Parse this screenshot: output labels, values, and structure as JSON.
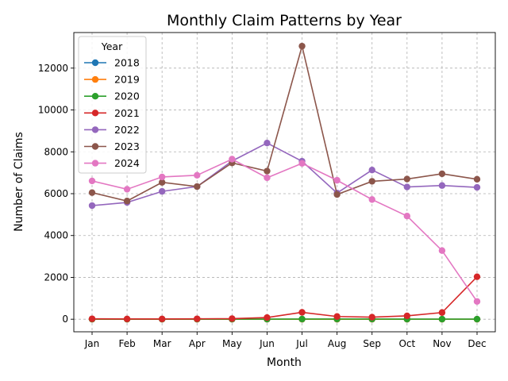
{
  "chart_data": {
    "type": "line",
    "title": "Monthly Claim Patterns by Year",
    "xlabel": "Month",
    "ylabel": "Number of Claims",
    "categories": [
      "Jan",
      "Feb",
      "Mar",
      "Apr",
      "May",
      "Jun",
      "Jul",
      "Aug",
      "Sep",
      "Oct",
      "Nov",
      "Dec"
    ],
    "ylim": [
      -600,
      13700
    ],
    "yticks": [
      0,
      2000,
      4000,
      6000,
      8000,
      10000,
      12000
    ],
    "grid": true,
    "legend": {
      "title": "Year",
      "placement": "top-left"
    },
    "series": [
      {
        "name": "2018",
        "color": "#1f77b4",
        "values": [
          0,
          0,
          0,
          0,
          0,
          0,
          0,
          0,
          0,
          0,
          0,
          0
        ]
      },
      {
        "name": "2019",
        "color": "#ff7f0e",
        "values": [
          0,
          0,
          0,
          0,
          0,
          0,
          0,
          0,
          0,
          0,
          0,
          0
        ]
      },
      {
        "name": "2020",
        "color": "#2ca02c",
        "values": [
          5,
          5,
          5,
          5,
          5,
          5,
          10,
          10,
          10,
          5,
          5,
          5
        ]
      },
      {
        "name": "2021",
        "color": "#d62728",
        "values": [
          20,
          15,
          15,
          20,
          30,
          80,
          330,
          130,
          100,
          160,
          320,
          2030
        ]
      },
      {
        "name": "2022",
        "color": "#9467bd",
        "values": [
          5430,
          5580,
          6110,
          6340,
          7560,
          8420,
          7550,
          6030,
          7130,
          6320,
          6390,
          6300
        ]
      },
      {
        "name": "2023",
        "color": "#8c564b",
        "values": [
          6050,
          5650,
          6540,
          6340,
          7470,
          7080,
          13050,
          5960,
          6590,
          6700,
          6950,
          6690
        ]
      },
      {
        "name": "2024",
        "color": "#e377c2",
        "values": [
          6610,
          6210,
          6800,
          6880,
          7650,
          6760,
          7450,
          6640,
          5720,
          4930,
          3280,
          850
        ]
      }
    ]
  }
}
